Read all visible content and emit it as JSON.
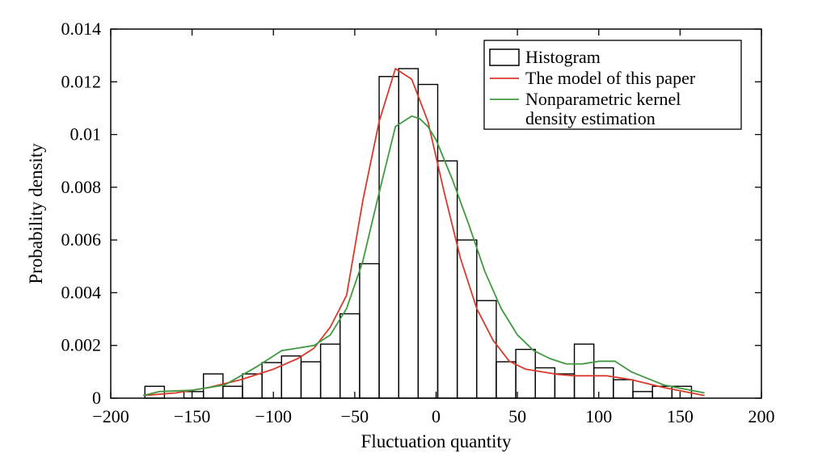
{
  "chart_data": {
    "type": "bar",
    "xlabel": "Fluctuation quantity",
    "ylabel": "Probability density",
    "xlim": [
      -200,
      200
    ],
    "ylim": [
      0,
      0.014
    ],
    "x_ticks": [
      -200,
      -150,
      -100,
      -50,
      0,
      50,
      100,
      150,
      200
    ],
    "x_tick_labels": [
      "−200",
      "−150",
      "−100",
      "−50",
      "0",
      "50",
      "100",
      "150",
      "200"
    ],
    "y_ticks": [
      0,
      0.002,
      0.004,
      0.006,
      0.008,
      0.01,
      0.012,
      0.014
    ],
    "y_tick_labels": [
      "0",
      "0.002",
      "0.004",
      "0.006",
      "0.008",
      "0.01",
      "0.012",
      "0.014"
    ],
    "grid": false,
    "legend": {
      "position": "top-right",
      "entries": [
        {
          "label": "Histogram",
          "style": "box",
          "color": "#000000"
        },
        {
          "label": "The model of this paper",
          "style": "line",
          "color": "#d93a2b"
        },
        {
          "label": "Nonparametric kernel",
          "label2": "density estimation",
          "style": "line",
          "color": "#3f9a3f"
        }
      ]
    },
    "histogram": {
      "name": "Histogram",
      "bin_width": 12,
      "bin_centers": [
        -173,
        -149,
        -137,
        -125,
        -113,
        -101,
        -89,
        -77,
        -65,
        -53,
        -41,
        -29,
        -17,
        -5,
        7,
        19,
        31,
        43,
        55,
        67,
        79,
        91,
        103,
        115,
        127,
        139,
        151
      ],
      "values": [
        0.00045,
        0.00025,
        0.00092,
        0.00045,
        0.00092,
        0.00135,
        0.0016,
        0.00138,
        0.00205,
        0.0032,
        0.0051,
        0.0122,
        0.0125,
        0.0119,
        0.009,
        0.006,
        0.0037,
        0.00138,
        0.00185,
        0.00115,
        0.00092,
        0.00205,
        0.00115,
        0.0007,
        0.00025,
        0.00045,
        0.00045
      ]
    },
    "series": [
      {
        "name": "The model of this paper",
        "color": "#d93a2b",
        "x": [
          -180,
          -160,
          -140,
          -120,
          -100,
          -85,
          -75,
          -65,
          -55,
          -45,
          -35,
          -25,
          -15,
          -5,
          5,
          15,
          25,
          35,
          45,
          55,
          65,
          75,
          85,
          95,
          105,
          120,
          140,
          165
        ],
        "y": [
          0.0001,
          0.0002,
          0.0004,
          0.0007,
          0.0011,
          0.0015,
          0.0019,
          0.0027,
          0.0039,
          0.0075,
          0.0105,
          0.0125,
          0.0121,
          0.0105,
          0.0078,
          0.0053,
          0.0034,
          0.0022,
          0.0014,
          0.0011,
          0.001,
          0.0009,
          0.00085,
          0.00085,
          0.00085,
          0.0007,
          0.0004,
          0.0001
        ]
      },
      {
        "name": "Nonparametric kernel density estimation",
        "color": "#3f9a3f",
        "x": [
          -180,
          -170,
          -150,
          -130,
          -110,
          -95,
          -85,
          -75,
          -65,
          -55,
          -45,
          -35,
          -25,
          -15,
          -10,
          -5,
          0,
          10,
          20,
          30,
          40,
          50,
          60,
          70,
          80,
          90,
          100,
          110,
          120,
          140,
          165
        ],
        "y": [
          0.0001,
          0.00025,
          0.0003,
          0.0005,
          0.0012,
          0.0018,
          0.0019,
          0.002,
          0.0024,
          0.0034,
          0.0052,
          0.0078,
          0.0103,
          0.0107,
          0.0106,
          0.0103,
          0.0098,
          0.0083,
          0.0066,
          0.0048,
          0.0034,
          0.0024,
          0.0018,
          0.0015,
          0.0013,
          0.0013,
          0.0014,
          0.0014,
          0.001,
          0.0005,
          0.0002
        ]
      }
    ]
  }
}
